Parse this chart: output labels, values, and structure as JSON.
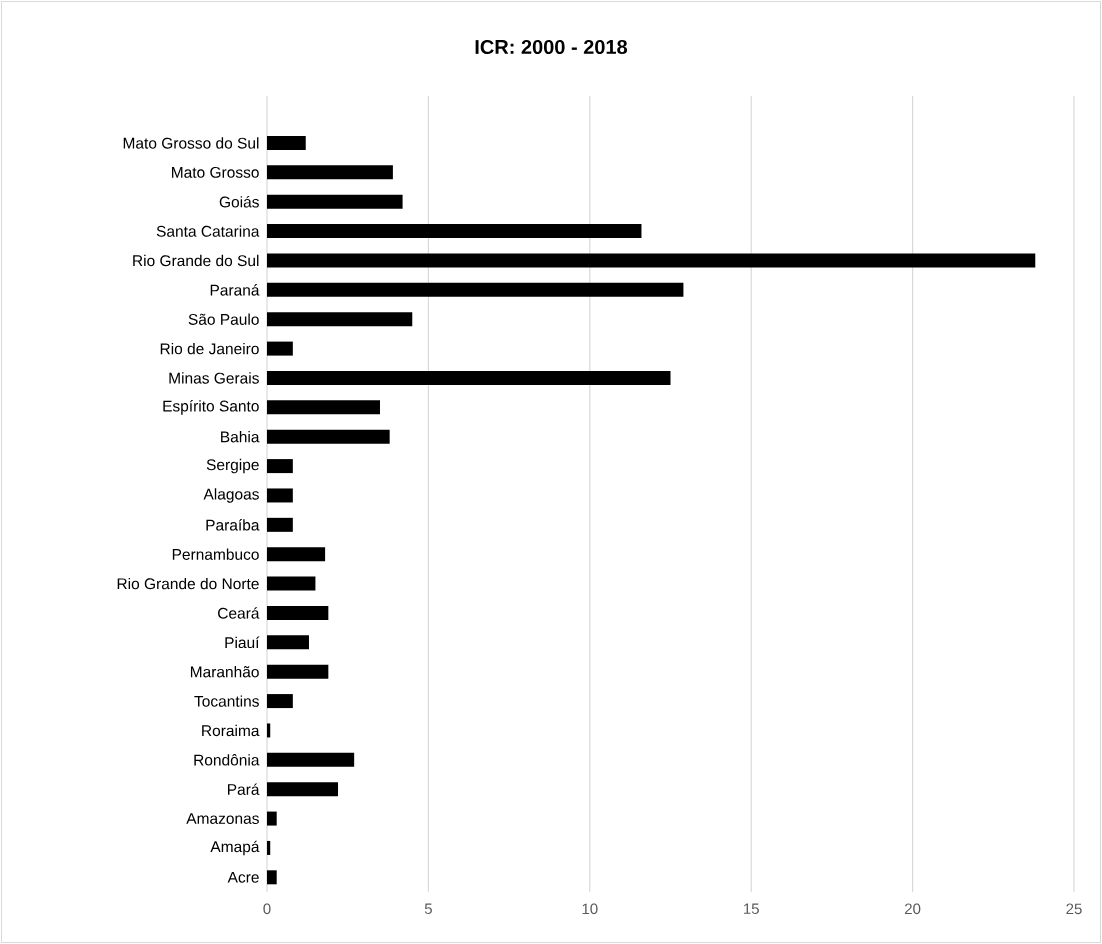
{
  "chart_data": {
    "type": "bar",
    "title": "ICR: 2000 - 2018",
    "orientation": "horizontal",
    "categories": [
      "Mato Grosso do Sul",
      "Mato Grosso",
      "Goiás",
      "Santa Catarina",
      "Rio Grande do Sul",
      "Paraná",
      "São Paulo",
      "Rio de Janeiro",
      "Minas Gerais",
      "Espírito Santo",
      "Bahia",
      "Sergipe",
      "Alagoas",
      "Paraíba",
      "Pernambuco",
      "Rio Grande do Norte",
      "Ceará",
      "Piauí",
      "Maranhão",
      "Tocantins",
      "Roraima",
      "Rondônia",
      "Pará",
      "Amazonas",
      "Amapá",
      "Acre"
    ],
    "values": [
      1.2,
      3.9,
      4.2,
      11.6,
      23.8,
      12.9,
      4.5,
      0.8,
      12.5,
      3.5,
      3.8,
      0.8,
      0.8,
      0.8,
      1.8,
      1.5,
      1.9,
      1.3,
      1.9,
      0.8,
      0.1,
      2.7,
      2.2,
      0.3,
      0.1,
      0.3
    ],
    "color": "#000000",
    "xlim": [
      0,
      25
    ],
    "xticks": [
      0,
      5,
      10,
      15,
      20,
      25
    ],
    "grid": "x"
  }
}
